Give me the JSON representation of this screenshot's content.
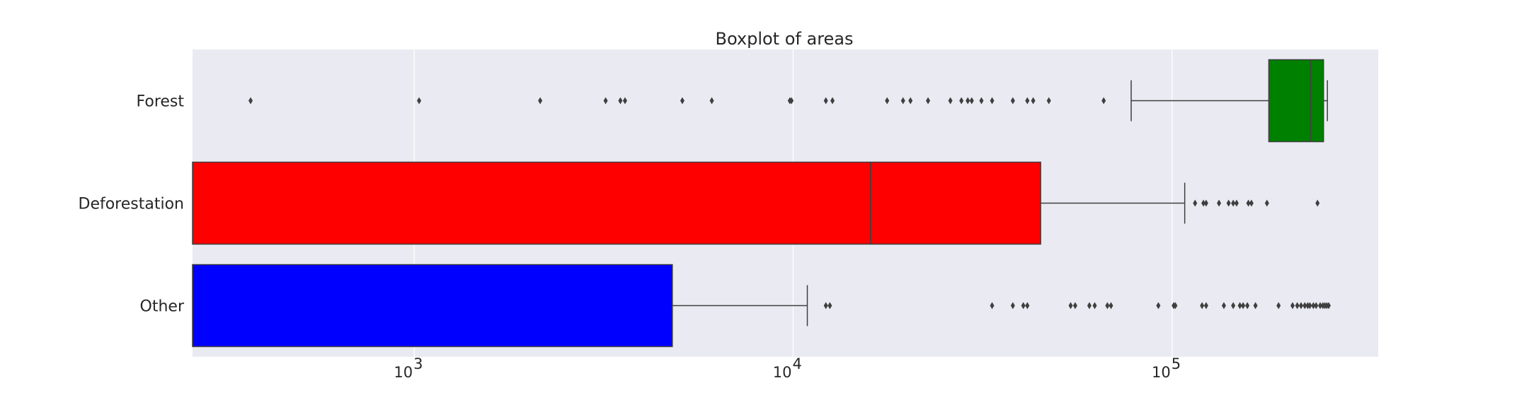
{
  "chart_data": {
    "type": "boxplot",
    "orientation": "horizontal",
    "title": "Boxplot of areas",
    "xlabel": "",
    "ylabel": "",
    "x_scale": "log",
    "xlim": [
      260,
      350000
    ],
    "x_ticks": [
      {
        "value": 1000,
        "base": "10",
        "exp": "3"
      },
      {
        "value": 10000,
        "base": "10",
        "exp": "4"
      },
      {
        "value": 100000,
        "base": "10",
        "exp": "5"
      }
    ],
    "grid": true,
    "background": "#eaeaf2",
    "categories": [
      "Forest",
      "Deforestation",
      "Other"
    ],
    "series": [
      {
        "category": "Forest",
        "color": "#008000",
        "whislo": 78000,
        "q1": 180000,
        "med": 232000,
        "q3": 251000,
        "whishi": 257000,
        "fliers": [
          370,
          1030,
          2150,
          3200,
          3500,
          3600,
          5100,
          6100,
          9800,
          9900,
          12200,
          12700,
          17700,
          19500,
          20400,
          22700,
          26000,
          27800,
          28900,
          29600,
          31400,
          33500,
          38000,
          41500,
          43000,
          47300,
          66000
        ]
      },
      {
        "category": "Deforestation",
        "color": "#ff0000",
        "whislo": 260,
        "q1": 260,
        "med": 16000,
        "q3": 45000,
        "whishi": 108000,
        "fliers": [
          115000,
          121000,
          123000,
          133000,
          141000,
          145000,
          148000,
          159000,
          162000,
          178000,
          242000
        ]
      },
      {
        "category": "Other",
        "color": "#0000ff",
        "whislo": 260,
        "q1": 260,
        "med": 260,
        "q3": 4800,
        "whishi": 10900,
        "fliers": [
          12200,
          12500,
          33500,
          38000,
          40500,
          41500,
          54000,
          55500,
          60500,
          62500,
          67500,
          69000,
          92000,
          101000,
          102000,
          120000,
          123000,
          137000,
          145000,
          151000,
          154000,
          158000,
          166000,
          191000,
          208000,
          214000,
          219000,
          224000,
          228000,
          231000,
          236000,
          240000,
          246000,
          250000,
          253000,
          256000,
          259000
        ]
      }
    ]
  }
}
